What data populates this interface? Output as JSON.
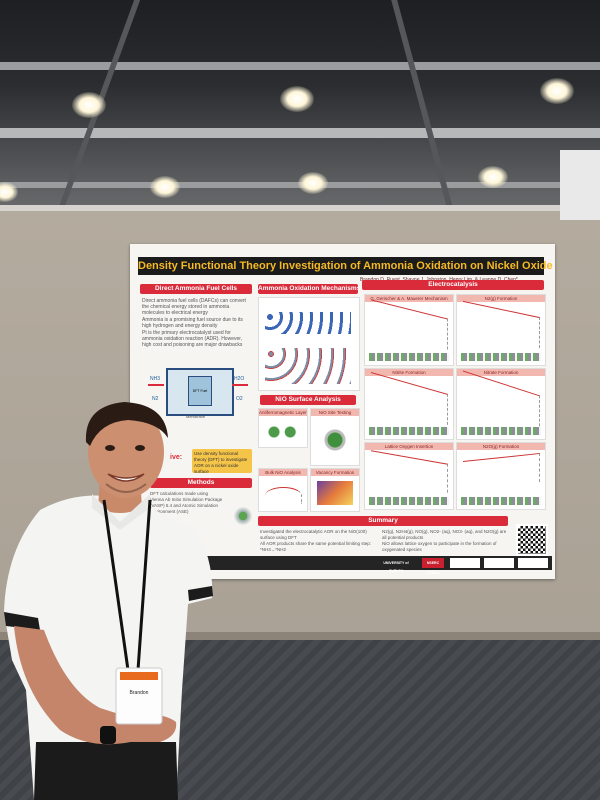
{
  "poster": {
    "title": "Density Functional Theory Investigation of Ammonia Oxidation on Nickel Oxide",
    "authors": "Brandon D. Ruest, Shayne J. Johnston, Henry Lim, & Leanne D. Chen*",
    "sections": {
      "direct_fuel_cells": "Direct Ammonia Fuel Cells",
      "mechanisms": "Ammonia Oxidation Mechanisms",
      "electrocatalysis": "Electrocatalysis",
      "nio_surface": "NiO Surface Analysis",
      "methods": "Methods",
      "summary": "Summary"
    },
    "fuel_cell_bullets": [
      "Direct ammonia fuel cells (DAFCs) can convert the chemical energy stored in ammonia molecules to electrical energy",
      "Ammonia is a promising fuel source due to its high hydrogen and energy density",
      "Pt is the primary electrocatalyst used for ammonia oxidation reaction (ADR). However, high cost and poisoning are major drawbacks"
    ],
    "objective": "Use density functional theory (DFT) to investigate AOR on a nickel oxide surface",
    "objective_label": "ive:",
    "fuel_cell_labels": [
      "NH3",
      "N2",
      "H2O",
      "O2",
      "DFT Fuel",
      "Membrane"
    ],
    "methods_lines": [
      "DFT calculations made using",
      "Vienna Ab Initio Simulation Package",
      "(VASP) 5.4 and Atomic Simulation",
      "Environment (ASE)"
    ],
    "surface_panels": [
      "Antiferromagnetic Layering",
      "NiO Site Testing",
      "Bulk NiO Analysis",
      "Vacancy Formation"
    ],
    "electro_panels": [
      "G. Gerischer & A. Mauerer Mechanism",
      "N2(g) Formation",
      "Nitrite Formation",
      "Nitrate Formation",
      "Lattice Oxygen Insertion",
      "N2O(g) Formation"
    ],
    "summary_left": [
      "Investigated the electrocatalytic AOR on the NiO(100) surface using DFT",
      "All AOR products share the same potential limiting step: *NH3→*NH2"
    ],
    "summary_right": [
      "N2(g), N2H4(g), NO(g), NO2- (aq), NO3- (aq), and N2O(g) are all potential products",
      "NiO allows lattice oxygen to participate in the formation of oxygenated species"
    ],
    "logos": [
      "UNIVERSITY of GUELPH",
      "NSERC CRSNG"
    ]
  },
  "badge": {
    "name": "Brandon"
  },
  "colors": {
    "accent": "#d92b3a",
    "title_bar": "#1b1b1b",
    "title_text": "#f5b923"
  }
}
